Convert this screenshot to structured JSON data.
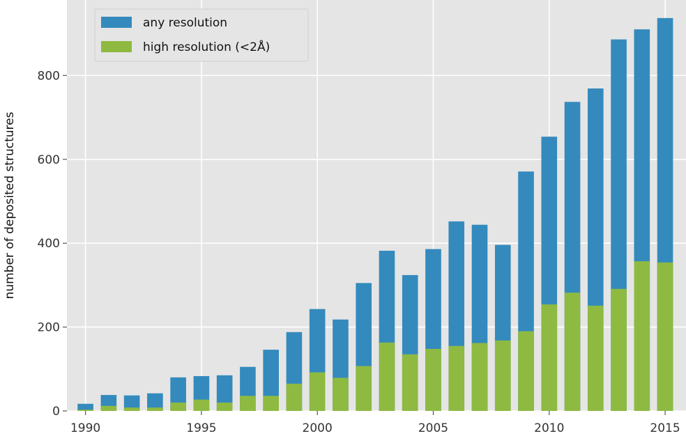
{
  "chart_data": {
    "type": "bar",
    "title": "",
    "xlabel": "",
    "ylabel": "number of deposited structures",
    "x": [
      1990,
      1991,
      1992,
      1993,
      1994,
      1995,
      1996,
      1997,
      1998,
      1999,
      2000,
      2001,
      2002,
      2003,
      2004,
      2005,
      2006,
      2007,
      2008,
      2009,
      2010,
      2011,
      2012,
      2013,
      2014,
      2015
    ],
    "xticks": [
      1990,
      1995,
      2000,
      2005,
      2010,
      2015
    ],
    "yticks": [
      0,
      200,
      400,
      600,
      800
    ],
    "xlim": [
      1989.2,
      2015.9
    ],
    "ylim": [
      0,
      980
    ],
    "series": [
      {
        "name": "any resolution",
        "color": "#348ABD",
        "values": [
          17,
          38,
          37,
          42,
          80,
          83,
          85,
          105,
          146,
          188,
          243,
          218,
          305,
          382,
          324,
          386,
          452,
          444,
          396,
          571,
          654,
          737,
          769,
          886,
          910,
          937
        ]
      },
      {
        "name": "high resolution (<2Å)",
        "color": "#8EBA42",
        "values": [
          3,
          12,
          8,
          8,
          20,
          27,
          20,
          36,
          36,
          65,
          92,
          79,
          107,
          163,
          135,
          148,
          155,
          162,
          168,
          190,
          254,
          282,
          251,
          291,
          357,
          354
        ]
      }
    ],
    "grid": true,
    "background": "#E5E5E5",
    "legend_position": "top-left",
    "stacked": false,
    "overlay": true
  }
}
